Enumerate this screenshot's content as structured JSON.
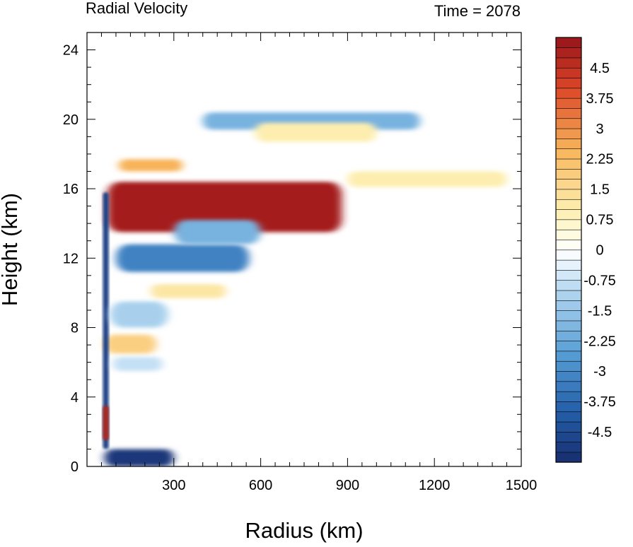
{
  "chart_data": {
    "type": "heatmap",
    "title": "Radial Velocity",
    "subtitle": "Time = 2078",
    "xlabel": "Radius (km)",
    "ylabel": "Height (km)",
    "xlim": [
      0,
      1500
    ],
    "ylim": [
      0,
      25
    ],
    "x_ticks": [
      300,
      600,
      900,
      1200,
      1500
    ],
    "y_ticks": [
      0,
      4,
      8,
      12,
      16,
      20,
      24
    ],
    "colorbar": {
      "min": -5.25,
      "max": 5.25,
      "step": 0.25,
      "labels": [
        "4.5",
        "3.75",
        "3",
        "2.25",
        "1.5",
        "0.75",
        "0",
        "-0.75",
        "-1.5",
        "-2.25",
        "-3",
        "-3.75",
        "-4.5"
      ],
      "label_values": [
        4.5,
        3.75,
        3,
        2.25,
        1.5,
        0.75,
        0,
        -0.75,
        -1.5,
        -2.25,
        -3,
        -3.75,
        -4.5
      ]
    },
    "features": [
      {
        "kind": "outflow",
        "value": 5.0,
        "r": [
          70,
          880
        ],
        "z": [
          13.5,
          16.4
        ]
      },
      {
        "kind": "inflow",
        "value": -3.2,
        "r": [
          100,
          560
        ],
        "z": [
          11.2,
          12.8
        ]
      },
      {
        "kind": "inflow",
        "value": -2.0,
        "r": [
          300,
          600
        ],
        "z": [
          12.8,
          14.2
        ]
      },
      {
        "kind": "inflow",
        "value": -5.0,
        "r": [
          60,
          300
        ],
        "z": [
          0,
          1.0
        ]
      },
      {
        "kind": "inflow",
        "value": -2.0,
        "r": [
          400,
          1150
        ],
        "z": [
          19.4,
          20.4
        ]
      },
      {
        "kind": "outflow",
        "value": 2.5,
        "r": [
          110,
          330
        ],
        "z": [
          17.0,
          17.7
        ]
      },
      {
        "kind": "outflow",
        "value": 1.0,
        "r": [
          900,
          1450
        ],
        "z": [
          16.1,
          17.0
        ]
      },
      {
        "kind": "outflow",
        "value": 1.0,
        "r": [
          580,
          1000
        ],
        "z": [
          18.7,
          19.8
        ]
      },
      {
        "kind": "outflow",
        "value": 1.8,
        "r": [
          60,
          240
        ],
        "z": [
          6.5,
          7.6
        ]
      },
      {
        "kind": "outflow",
        "value": 1.2,
        "r": [
          220,
          480
        ],
        "z": [
          9.7,
          10.5
        ]
      },
      {
        "kind": "inflow",
        "value": -4.8,
        "r": [
          55,
          75
        ],
        "z": [
          1.0,
          15.8
        ]
      },
      {
        "kind": "outflow",
        "value": 4.8,
        "r": [
          55,
          75
        ],
        "z": [
          1.5,
          3.5
        ]
      },
      {
        "kind": "inflow",
        "value": -1.2,
        "r": [
          80,
          280
        ],
        "z": [
          8.0,
          9.5
        ]
      },
      {
        "kind": "inflow",
        "value": -0.8,
        "r": [
          90,
          260
        ],
        "z": [
          5.5,
          6.3
        ]
      }
    ]
  }
}
